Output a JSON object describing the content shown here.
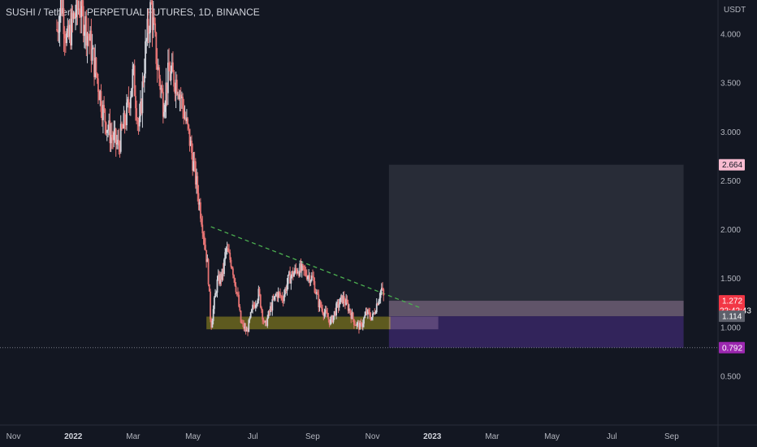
{
  "header": {
    "title": "SUSHI / TetherUS PERPETUAL FUTURES, 1D, BINANCE"
  },
  "chart_data": {
    "type": "candlestick",
    "currency": "USDT",
    "y_axis": {
      "ticks": [
        "4.000",
        "3.500",
        "3.000",
        "2.500",
        "2.000",
        "1.500",
        "1.000",
        "0.500"
      ],
      "values": [
        4.0,
        3.5,
        3.0,
        2.5,
        2.0,
        1.5,
        1.0,
        0.5
      ],
      "range": [
        0.0,
        4.35
      ]
    },
    "x_axis": {
      "labels": [
        "Nov",
        "2022",
        "Mar",
        "May",
        "Jul",
        "Sep",
        "Nov",
        "2023",
        "Mar",
        "May",
        "Jul",
        "Sep"
      ],
      "bold": [
        false,
        true,
        false,
        false,
        false,
        false,
        false,
        true,
        false,
        false,
        false,
        false
      ],
      "month_index": [
        0,
        2,
        4,
        6,
        8,
        10,
        12,
        14,
        16,
        18,
        20,
        22
      ],
      "range": [
        -0.45,
        23.55
      ]
    },
    "price_tags": [
      {
        "label": "2.664",
        "value": 2.664,
        "bg": "#f8bbd0",
        "fg": "#131722"
      },
      {
        "label": "1.272",
        "sublabel": "22:42:43",
        "value": 1.272,
        "bg": "#f23645",
        "fg": "#ffffff"
      },
      {
        "label": "1.114",
        "value": 1.114,
        "bg": "#5d606b",
        "fg": "#ffffff"
      },
      {
        "label": "0.792",
        "value": 0.792,
        "bg": "#9c27b0",
        "fg": "#ffffff"
      }
    ],
    "price_path": [
      [
        1.45,
        4.05
      ],
      [
        1.6,
        4.35
      ],
      [
        1.8,
        3.9
      ],
      [
        2.0,
        4.15
      ],
      [
        2.2,
        4.3
      ],
      [
        2.5,
        4.0
      ],
      [
        2.8,
        3.55
      ],
      [
        3.0,
        3.2
      ],
      [
        3.2,
        3.0
      ],
      [
        3.5,
        2.85
      ],
      [
        3.8,
        3.2
      ],
      [
        4.0,
        3.6
      ],
      [
        4.2,
        3.0
      ],
      [
        4.4,
        3.8
      ],
      [
        4.6,
        4.3
      ],
      [
        4.8,
        3.7
      ],
      [
        5.0,
        3.3
      ],
      [
        5.2,
        3.6
      ],
      [
        5.5,
        3.5
      ],
      [
        5.7,
        3.2
      ],
      [
        5.9,
        2.9
      ],
      [
        6.1,
        2.5
      ],
      [
        6.3,
        2.1
      ],
      [
        6.5,
        1.6
      ],
      [
        6.6,
        1.0
      ],
      [
        6.8,
        1.45
      ],
      [
        7.0,
        1.55
      ],
      [
        7.1,
        1.8
      ],
      [
        7.3,
        1.65
      ],
      [
        7.5,
        1.3
      ],
      [
        7.6,
        1.05
      ],
      [
        7.8,
        0.95
      ],
      [
        8.0,
        1.2
      ],
      [
        8.2,
        1.35
      ],
      [
        8.4,
        1.0
      ],
      [
        8.6,
        1.2
      ],
      [
        8.8,
        1.35
      ],
      [
        9.0,
        1.3
      ],
      [
        9.2,
        1.5
      ],
      [
        9.5,
        1.6
      ],
      [
        9.8,
        1.55
      ],
      [
        10.0,
        1.5
      ],
      [
        10.2,
        1.25
      ],
      [
        10.4,
        1.15
      ],
      [
        10.6,
        1.05
      ],
      [
        10.8,
        1.2
      ],
      [
        11.0,
        1.3
      ],
      [
        11.2,
        1.2
      ],
      [
        11.4,
        1.05
      ],
      [
        11.6,
        1.0
      ],
      [
        11.8,
        1.15
      ],
      [
        12.0,
        1.1
      ],
      [
        12.2,
        1.3
      ],
      [
        12.3,
        1.4
      ],
      [
        12.4,
        1.27
      ]
    ],
    "overlays": {
      "support_zone": {
        "x_start": 6.45,
        "x_end": 12.6,
        "y_low": 0.98,
        "y_high": 1.11,
        "color": "rgba(235, 215, 25, 0.35)"
      },
      "trendline": {
        "x_start": 6.6,
        "y_start": 2.03,
        "x_end": 13.6,
        "y_end": 1.2,
        "color": "#4caf50"
      },
      "profit_zone": {
        "x_start": 12.55,
        "x_end": 22.4,
        "y_low": 1.114,
        "y_high": 2.664,
        "color": "rgba(120, 123, 134, 0.22)"
      },
      "stop_zone": {
        "x_start": 12.55,
        "x_end": 22.4,
        "y_low": 0.792,
        "y_high": 1.114,
        "color": "rgba(103, 58, 183, 0.38)"
      },
      "entry_box": {
        "x_start": 12.55,
        "x_end": 22.4,
        "y_low": 1.114,
        "y_high": 1.272,
        "color": "rgba(200, 160, 200, 0.35)"
      },
      "entry_small": {
        "x_start": 12.55,
        "x_end": 14.2,
        "y_low": 0.98,
        "y_high": 1.11,
        "color": "rgba(200, 160, 200, 0.28)"
      },
      "hline_value": 0.792
    }
  }
}
